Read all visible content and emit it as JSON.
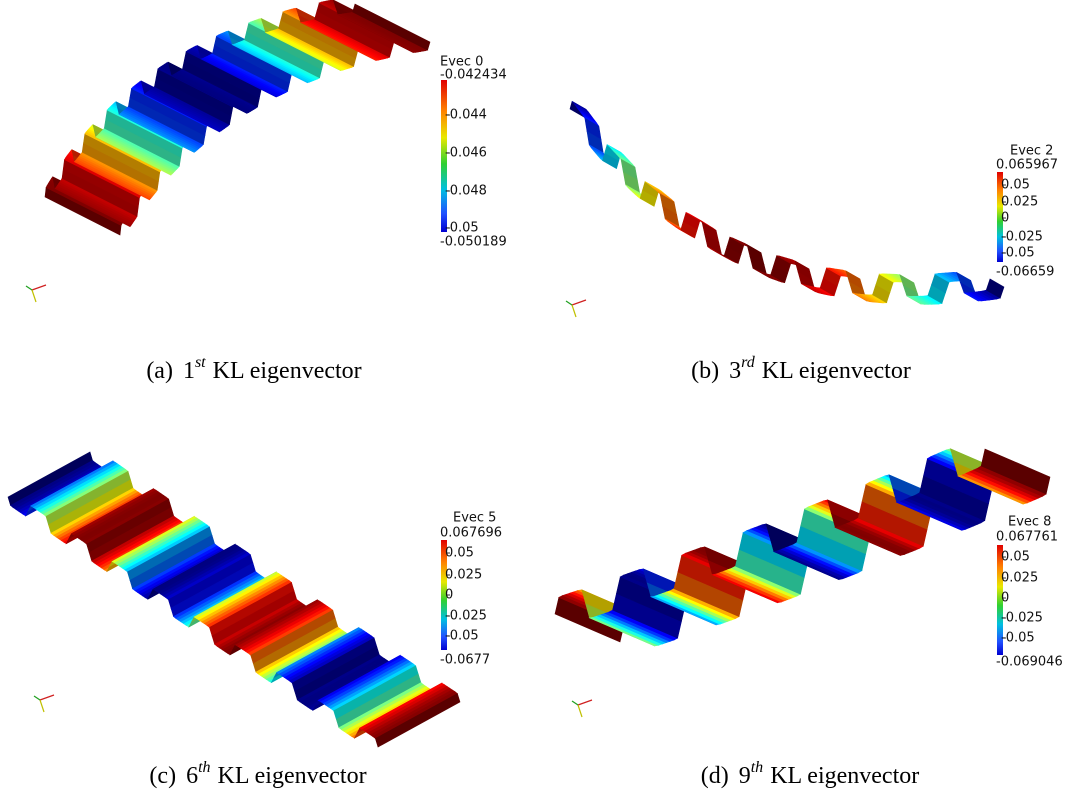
{
  "panels": [
    {
      "caption": {
        "label": "(a)",
        "number": "1",
        "sup": "st",
        "text": "KL eigenvector"
      },
      "colorbar": {
        "title": "Evec 0",
        "max": "-0.042434",
        "ticks": [
          "-0.044",
          "-0.046",
          "-0.048",
          "-0.05"
        ],
        "min": "-0.050189"
      }
    },
    {
      "caption": {
        "label": "(b)",
        "number": "3",
        "sup": "rd",
        "text": "KL eigenvector"
      },
      "colorbar": {
        "title": "Evec 2",
        "max": "0.065967",
        "ticks": [
          "0.05",
          "0.025",
          "0",
          "-0.025",
          "-0.05"
        ],
        "min": "-0.06659"
      }
    },
    {
      "caption": {
        "label": "(c)",
        "number": "6",
        "sup": "th",
        "text": "KL eigenvector"
      },
      "colorbar": {
        "title": "Evec 5",
        "max": "0.067696",
        "ticks": [
          "0.05",
          "0.025",
          "0",
          "-0.025",
          "-0.05"
        ],
        "min": "-0.0677"
      }
    },
    {
      "caption": {
        "label": "(d)",
        "number": "9",
        "sup": "th",
        "text": "KL eigenvector"
      },
      "colorbar": {
        "title": "Evec 8",
        "max": "0.067761",
        "ticks": [
          "0.05",
          "0.025",
          "0",
          "-0.025",
          "-0.05"
        ],
        "min": "-0.069046"
      }
    }
  ]
}
